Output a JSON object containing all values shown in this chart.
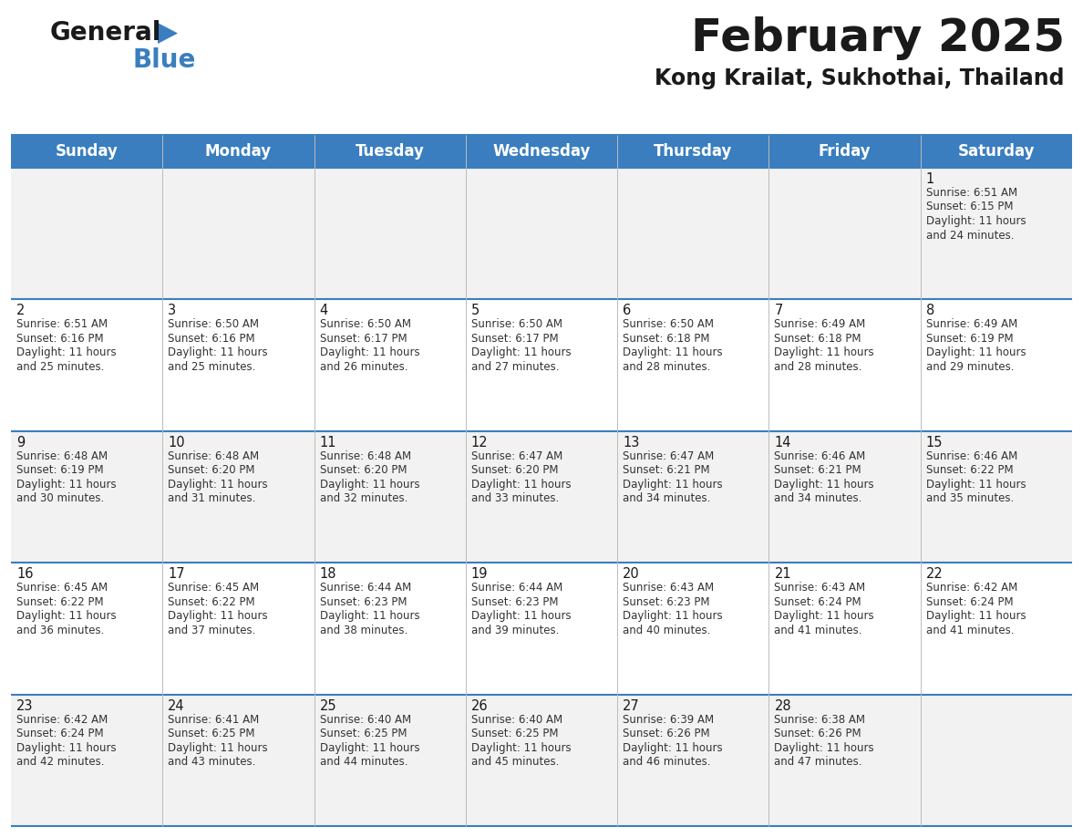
{
  "title": "February 2025",
  "subtitle": "Kong Krailat, Sukhothai, Thailand",
  "header_color": "#3a7ebf",
  "header_text_color": "#ffffff",
  "row_colors": [
    "#f2f2f2",
    "#ffffff"
  ],
  "border_color": "#3a7ebf",
  "text_color": "#333333",
  "day_num_color": "#1a1a1a",
  "day_names": [
    "Sunday",
    "Monday",
    "Tuesday",
    "Wednesday",
    "Thursday",
    "Friday",
    "Saturday"
  ],
  "days": [
    {
      "day": 1,
      "col": 6,
      "row": 0,
      "sunrise": "6:51 AM",
      "sunset": "6:15 PM",
      "daylight_h": "11 hours",
      "daylight_m": "and 24 minutes."
    },
    {
      "day": 2,
      "col": 0,
      "row": 1,
      "sunrise": "6:51 AM",
      "sunset": "6:16 PM",
      "daylight_h": "11 hours",
      "daylight_m": "and 25 minutes."
    },
    {
      "day": 3,
      "col": 1,
      "row": 1,
      "sunrise": "6:50 AM",
      "sunset": "6:16 PM",
      "daylight_h": "11 hours",
      "daylight_m": "and 25 minutes."
    },
    {
      "day": 4,
      "col": 2,
      "row": 1,
      "sunrise": "6:50 AM",
      "sunset": "6:17 PM",
      "daylight_h": "11 hours",
      "daylight_m": "and 26 minutes."
    },
    {
      "day": 5,
      "col": 3,
      "row": 1,
      "sunrise": "6:50 AM",
      "sunset": "6:17 PM",
      "daylight_h": "11 hours",
      "daylight_m": "and 27 minutes."
    },
    {
      "day": 6,
      "col": 4,
      "row": 1,
      "sunrise": "6:50 AM",
      "sunset": "6:18 PM",
      "daylight_h": "11 hours",
      "daylight_m": "and 28 minutes."
    },
    {
      "day": 7,
      "col": 5,
      "row": 1,
      "sunrise": "6:49 AM",
      "sunset": "6:18 PM",
      "daylight_h": "11 hours",
      "daylight_m": "and 28 minutes."
    },
    {
      "day": 8,
      "col": 6,
      "row": 1,
      "sunrise": "6:49 AM",
      "sunset": "6:19 PM",
      "daylight_h": "11 hours",
      "daylight_m": "and 29 minutes."
    },
    {
      "day": 9,
      "col": 0,
      "row": 2,
      "sunrise": "6:48 AM",
      "sunset": "6:19 PM",
      "daylight_h": "11 hours",
      "daylight_m": "and 30 minutes."
    },
    {
      "day": 10,
      "col": 1,
      "row": 2,
      "sunrise": "6:48 AM",
      "sunset": "6:20 PM",
      "daylight_h": "11 hours",
      "daylight_m": "and 31 minutes."
    },
    {
      "day": 11,
      "col": 2,
      "row": 2,
      "sunrise": "6:48 AM",
      "sunset": "6:20 PM",
      "daylight_h": "11 hours",
      "daylight_m": "and 32 minutes."
    },
    {
      "day": 12,
      "col": 3,
      "row": 2,
      "sunrise": "6:47 AM",
      "sunset": "6:20 PM",
      "daylight_h": "11 hours",
      "daylight_m": "and 33 minutes."
    },
    {
      "day": 13,
      "col": 4,
      "row": 2,
      "sunrise": "6:47 AM",
      "sunset": "6:21 PM",
      "daylight_h": "11 hours",
      "daylight_m": "and 34 minutes."
    },
    {
      "day": 14,
      "col": 5,
      "row": 2,
      "sunrise": "6:46 AM",
      "sunset": "6:21 PM",
      "daylight_h": "11 hours",
      "daylight_m": "and 34 minutes."
    },
    {
      "day": 15,
      "col": 6,
      "row": 2,
      "sunrise": "6:46 AM",
      "sunset": "6:22 PM",
      "daylight_h": "11 hours",
      "daylight_m": "and 35 minutes."
    },
    {
      "day": 16,
      "col": 0,
      "row": 3,
      "sunrise": "6:45 AM",
      "sunset": "6:22 PM",
      "daylight_h": "11 hours",
      "daylight_m": "and 36 minutes."
    },
    {
      "day": 17,
      "col": 1,
      "row": 3,
      "sunrise": "6:45 AM",
      "sunset": "6:22 PM",
      "daylight_h": "11 hours",
      "daylight_m": "and 37 minutes."
    },
    {
      "day": 18,
      "col": 2,
      "row": 3,
      "sunrise": "6:44 AM",
      "sunset": "6:23 PM",
      "daylight_h": "11 hours",
      "daylight_m": "and 38 minutes."
    },
    {
      "day": 19,
      "col": 3,
      "row": 3,
      "sunrise": "6:44 AM",
      "sunset": "6:23 PM",
      "daylight_h": "11 hours",
      "daylight_m": "and 39 minutes."
    },
    {
      "day": 20,
      "col": 4,
      "row": 3,
      "sunrise": "6:43 AM",
      "sunset": "6:23 PM",
      "daylight_h": "11 hours",
      "daylight_m": "and 40 minutes."
    },
    {
      "day": 21,
      "col": 5,
      "row": 3,
      "sunrise": "6:43 AM",
      "sunset": "6:24 PM",
      "daylight_h": "11 hours",
      "daylight_m": "and 41 minutes."
    },
    {
      "day": 22,
      "col": 6,
      "row": 3,
      "sunrise": "6:42 AM",
      "sunset": "6:24 PM",
      "daylight_h": "11 hours",
      "daylight_m": "and 41 minutes."
    },
    {
      "day": 23,
      "col": 0,
      "row": 4,
      "sunrise": "6:42 AM",
      "sunset": "6:24 PM",
      "daylight_h": "11 hours",
      "daylight_m": "and 42 minutes."
    },
    {
      "day": 24,
      "col": 1,
      "row": 4,
      "sunrise": "6:41 AM",
      "sunset": "6:25 PM",
      "daylight_h": "11 hours",
      "daylight_m": "and 43 minutes."
    },
    {
      "day": 25,
      "col": 2,
      "row": 4,
      "sunrise": "6:40 AM",
      "sunset": "6:25 PM",
      "daylight_h": "11 hours",
      "daylight_m": "and 44 minutes."
    },
    {
      "day": 26,
      "col": 3,
      "row": 4,
      "sunrise": "6:40 AM",
      "sunset": "6:25 PM",
      "daylight_h": "11 hours",
      "daylight_m": "and 45 minutes."
    },
    {
      "day": 27,
      "col": 4,
      "row": 4,
      "sunrise": "6:39 AM",
      "sunset": "6:26 PM",
      "daylight_h": "11 hours",
      "daylight_m": "and 46 minutes."
    },
    {
      "day": 28,
      "col": 5,
      "row": 4,
      "sunrise": "6:38 AM",
      "sunset": "6:26 PM",
      "daylight_h": "11 hours",
      "daylight_m": "and 47 minutes."
    }
  ],
  "num_rows": 5,
  "fig_width": 11.88,
  "fig_height": 9.18,
  "dpi": 100
}
